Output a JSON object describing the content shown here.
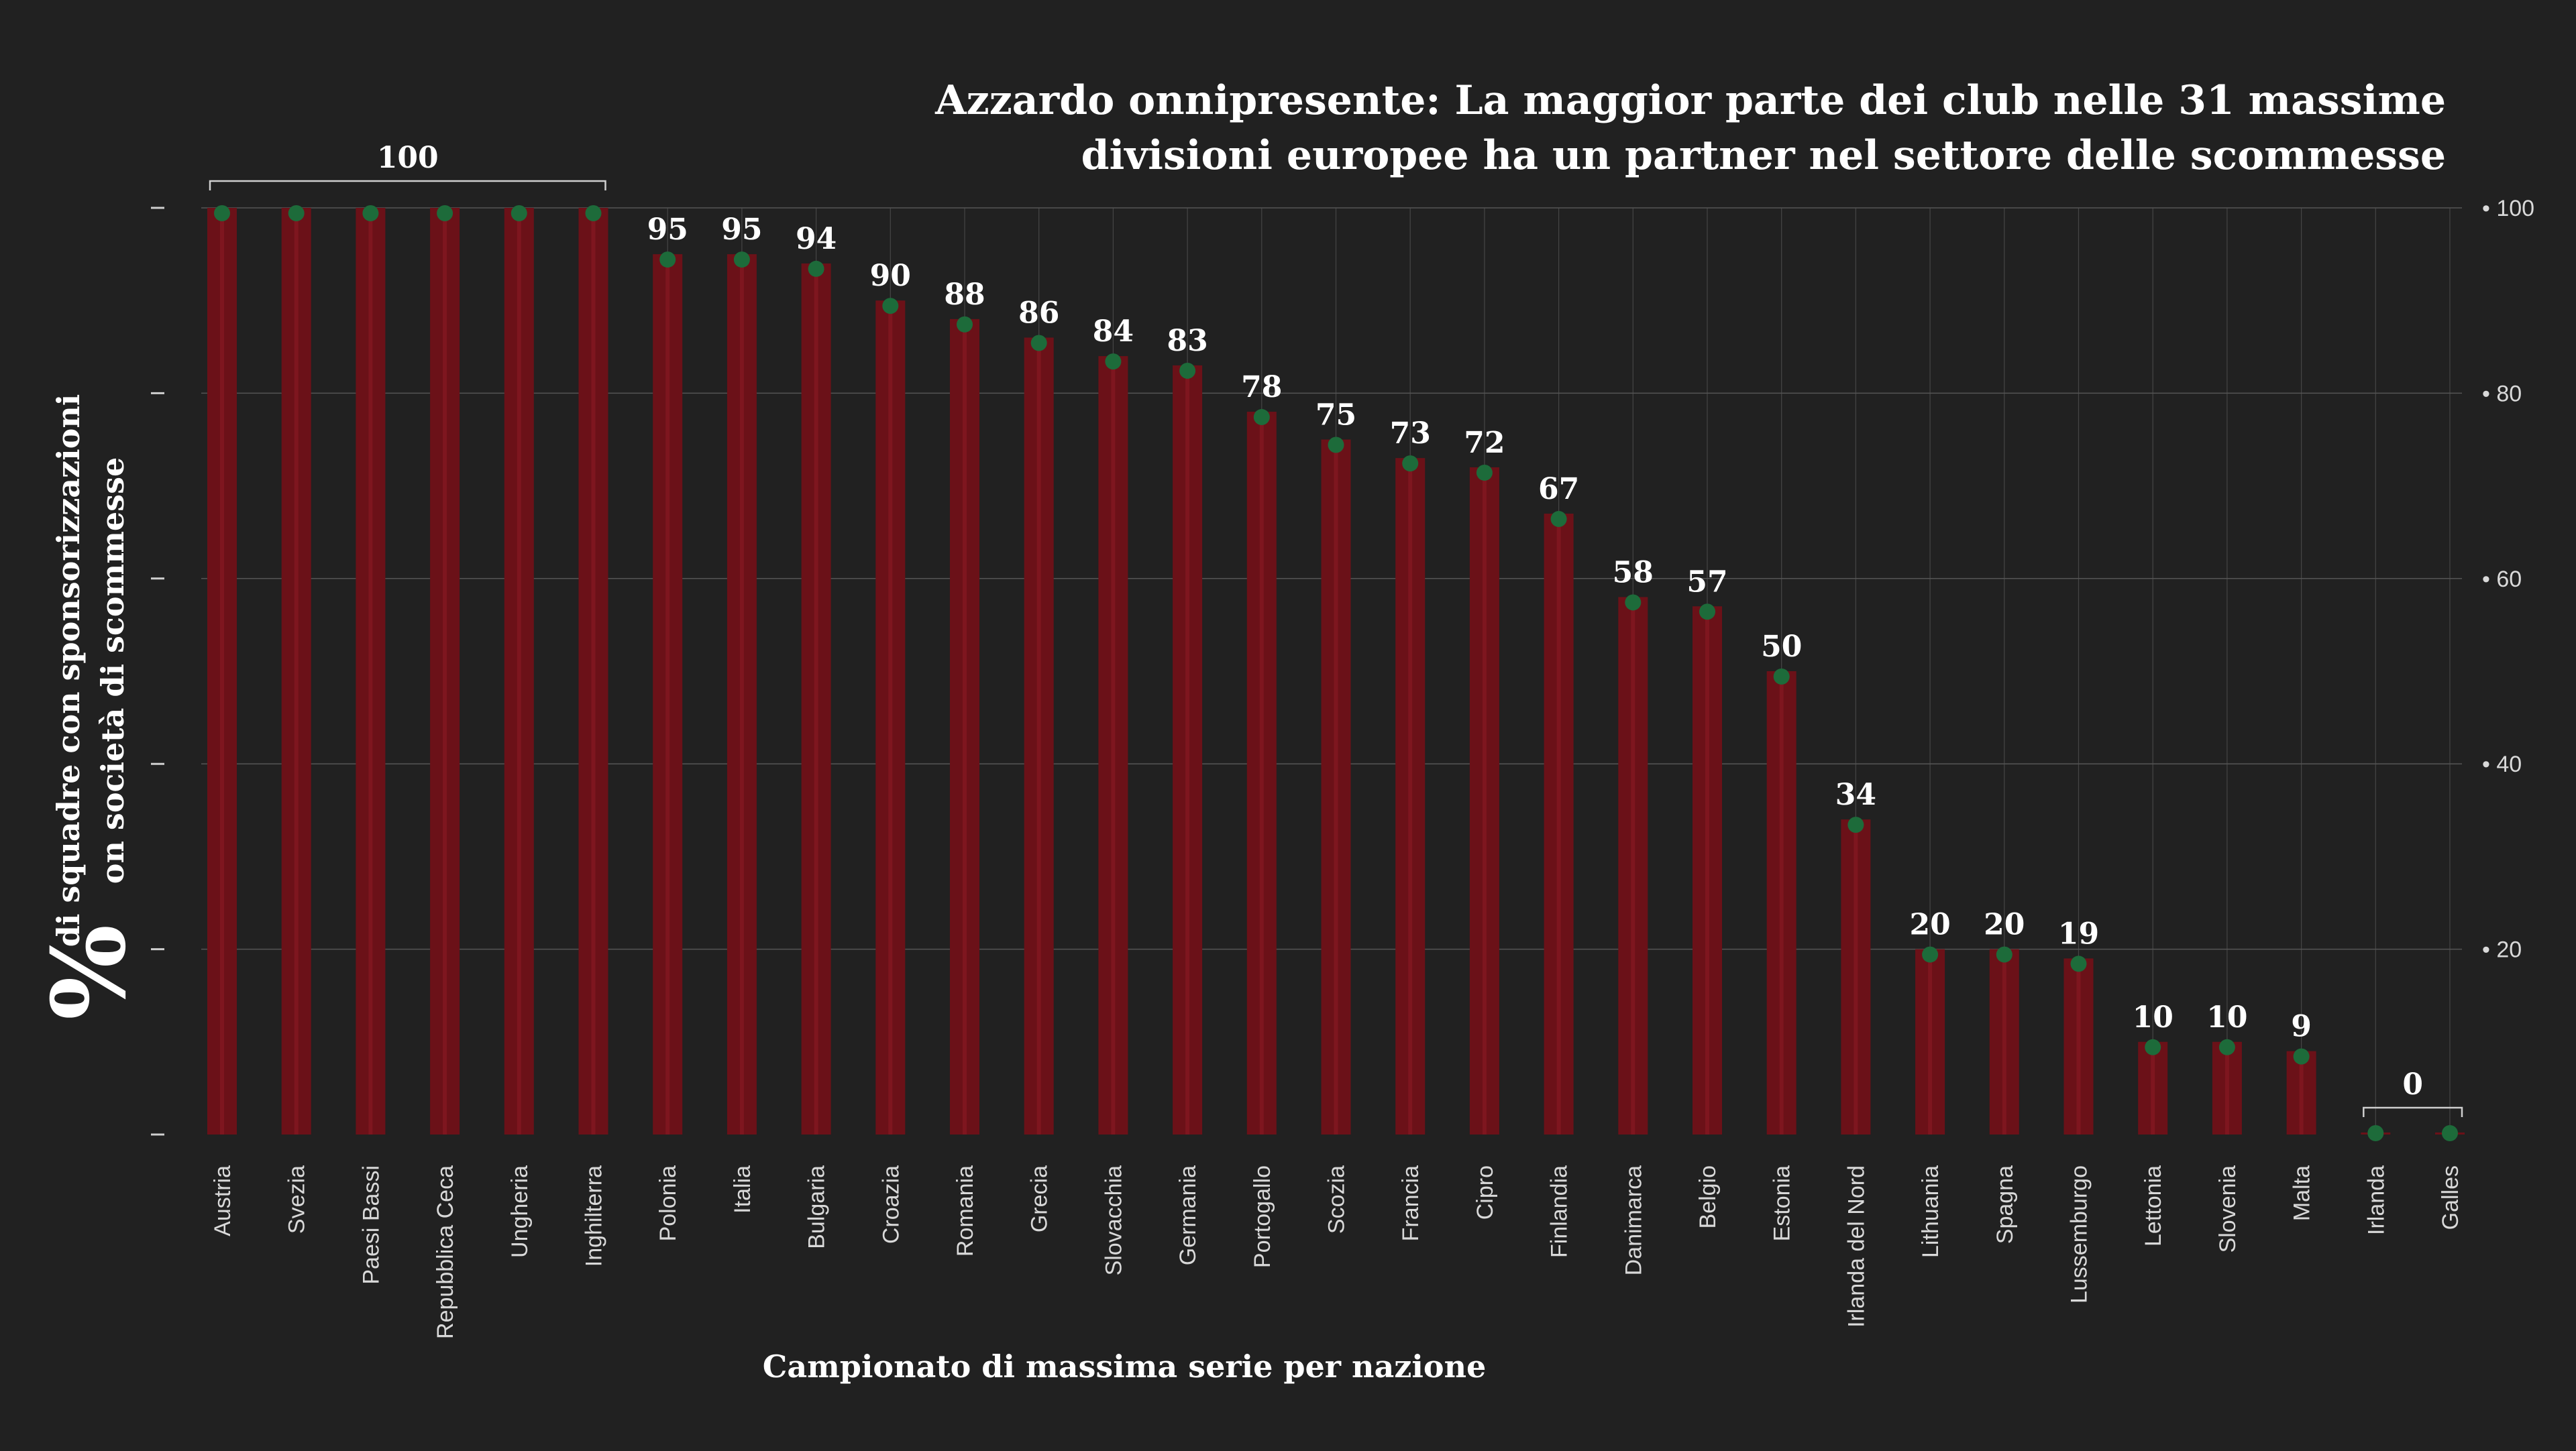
{
  "chart_data": {
    "type": "bar",
    "title": "Azzardo onnipresente: La maggior parte dei club nelle 31 massime divisioni europee ha un partner nel settore delle scommesse",
    "title_lines": [
      "Azzardo onnipresente: La maggior parte dei club nelle 31 massime",
      "divisioni europee ha un partner nel settore delle scommesse"
    ],
    "xlabel": "Campionato di massima serie per nazione",
    "ylabel_symbol": "%",
    "ylabel_lines": [
      "di squadre con sponsorizzazioni",
      "on società di scommesse"
    ],
    "categories": [
      "Austria",
      "Svezia",
      "Paesi Bassi",
      "Repubblica Ceca",
      "Ungheria",
      "Inghilterra",
      "Polonia",
      "Italia",
      "Bulgaria",
      "Croazia",
      "Romania",
      "Grecia",
      "Slovacchia",
      "Germania",
      "Portogallo",
      "Scozia",
      "Francia",
      "Cipro",
      "Finlandia",
      "Danimarca",
      "Belgio",
      "Estonia",
      "Irlanda del Nord",
      "Lithuania",
      "Spagna",
      "Lussemburgo",
      "Lettonia",
      "Slovenia",
      "Malta",
      "Irlanda",
      "Galles"
    ],
    "values": [
      100,
      100,
      100,
      100,
      100,
      100,
      95,
      95,
      94,
      90,
      88,
      86,
      84,
      83,
      78,
      75,
      73,
      72,
      67,
      58,
      57,
      50,
      34,
      20,
      20,
      19,
      10,
      10,
      9,
      0,
      0
    ],
    "value_labels": [
      "",
      "",
      "",
      "",
      "",
      "",
      "95",
      "95",
      "94",
      "90",
      "88",
      "86",
      "84",
      "83",
      "78",
      "75",
      "73",
      "72",
      "67",
      "58",
      "57",
      "50",
      "34",
      "20",
      "20",
      "19",
      "10",
      "10",
      "9",
      "",
      ""
    ],
    "group_labels": [
      {
        "from": 0,
        "to": 5,
        "label": "100"
      },
      {
        "from": 29,
        "to": 30,
        "label": "0"
      }
    ],
    "ylim": [
      0,
      100
    ],
    "yticks_right": [
      "20",
      "40",
      "60",
      "80",
      "100"
    ],
    "ytick_values": [
      20,
      40,
      60,
      80,
      100
    ],
    "ytick_prefix": "•",
    "grid": true,
    "colors": {
      "background": "#212121",
      "bar": "#6b1118",
      "bar_stripe": "#8a1a24",
      "marker": "#1d6b3a",
      "grid": "#555555",
      "text": "#ffffff",
      "axis_text": "#d9d9d9"
    }
  }
}
